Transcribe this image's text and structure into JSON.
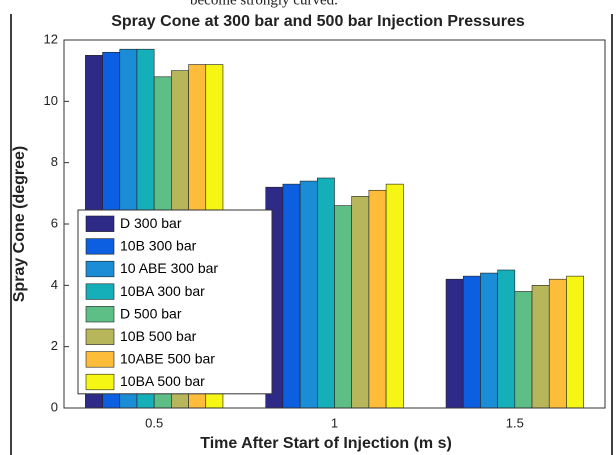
{
  "caption_fragment": "become strongly curved.",
  "chart_data": {
    "type": "bar",
    "title": "Spray Cone at 300 bar and 500 bar Injection Pressures",
    "xlabel": "Time After Start of Injection (m s)",
    "ylabel": "Spray Cone (degree)",
    "categories": [
      "0.5",
      "1",
      "1.5"
    ],
    "series": [
      {
        "name": "D 300 bar",
        "color": "#2e2a87",
        "values": [
          11.5,
          7.2,
          4.2
        ]
      },
      {
        "name": "10B 300 bar",
        "color": "#0c5fe0",
        "values": [
          11.6,
          7.3,
          4.3
        ]
      },
      {
        "name": "10 ABE 300 bar",
        "color": "#1a8dd6",
        "values": [
          11.7,
          7.4,
          4.4
        ]
      },
      {
        "name": "10BA 300 bar",
        "color": "#15afb9",
        "values": [
          11.7,
          7.5,
          4.5
        ]
      },
      {
        "name": "D 500 bar",
        "color": "#5dbf86",
        "values": [
          10.8,
          6.6,
          3.8
        ]
      },
      {
        "name": "10B 500 bar",
        "color": "#b8b65b",
        "values": [
          11.0,
          6.9,
          4.0
        ]
      },
      {
        "name": "10ABE 500 bar",
        "color": "#fdbd3a",
        "values": [
          11.2,
          7.1,
          4.2
        ]
      },
      {
        "name": "10BA 500 bar",
        "color": "#f6f614",
        "values": [
          11.2,
          7.3,
          4.3
        ]
      }
    ],
    "ylim": [
      0,
      12
    ],
    "yticks": [
      0,
      2,
      4,
      6,
      8,
      10,
      12
    ],
    "legend": "lower left"
  }
}
